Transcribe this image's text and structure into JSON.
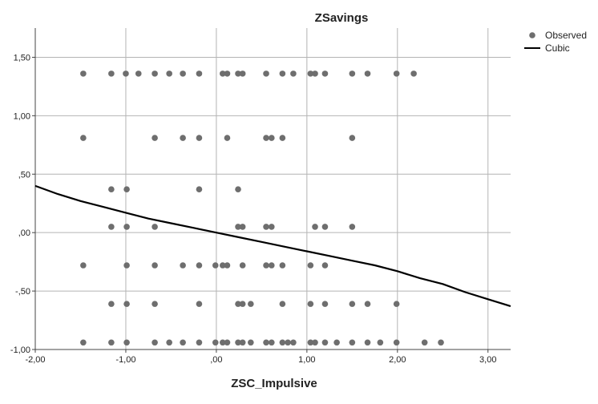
{
  "chart_data": {
    "type": "scatter",
    "title": "ZSavings",
    "xlabel": "ZSC_Impulsive",
    "ylabel": "",
    "xlim": [
      -2.0,
      3.25
    ],
    "ylim": [
      -1.0,
      1.75
    ],
    "x_ticks": [
      -2,
      -1,
      0,
      1,
      2,
      3
    ],
    "x_tick_labels": [
      "-2,00",
      "-1,00",
      ",00",
      "1,00",
      "2,00",
      "3,00"
    ],
    "y_ticks": [
      -1,
      -0.5,
      0,
      0.5,
      1,
      1.5
    ],
    "y_tick_labels": [
      "-1,00",
      "-,50",
      ",00",
      ",50",
      "1,00",
      "1,50"
    ],
    "grid": true,
    "legend": {
      "position": "top-right",
      "entries": [
        {
          "label": "Observed",
          "marker": "circle"
        },
        {
          "label": "Cubic",
          "marker": "line"
        }
      ]
    },
    "colors": {
      "observed": "#6e6e6e",
      "cubic": "#000000",
      "grid": "#b4b4b4",
      "axis": "#444444"
    },
    "series": [
      {
        "name": "Observed",
        "points": [
          [
            -1.47,
            1.36
          ],
          [
            -1.16,
            1.36
          ],
          [
            -1.0,
            1.36
          ],
          [
            -0.86,
            1.36
          ],
          [
            -0.68,
            1.36
          ],
          [
            -0.52,
            1.36
          ],
          [
            -0.37,
            1.36
          ],
          [
            -0.19,
            1.36
          ],
          [
            0.07,
            1.36
          ],
          [
            0.12,
            1.36
          ],
          [
            0.24,
            1.36
          ],
          [
            0.29,
            1.36
          ],
          [
            0.55,
            1.36
          ],
          [
            0.73,
            1.36
          ],
          [
            0.85,
            1.36
          ],
          [
            1.04,
            1.36
          ],
          [
            1.09,
            1.36
          ],
          [
            1.2,
            1.36
          ],
          [
            1.5,
            1.36
          ],
          [
            1.67,
            1.36
          ],
          [
            1.99,
            1.36
          ],
          [
            2.18,
            1.36
          ],
          [
            -1.47,
            0.81
          ],
          [
            -0.68,
            0.81
          ],
          [
            -0.37,
            0.81
          ],
          [
            -0.19,
            0.81
          ],
          [
            0.12,
            0.81
          ],
          [
            0.55,
            0.81
          ],
          [
            0.61,
            0.81
          ],
          [
            0.73,
            0.81
          ],
          [
            1.5,
            0.81
          ],
          [
            -1.16,
            0.37
          ],
          [
            -0.99,
            0.37
          ],
          [
            -0.19,
            0.37
          ],
          [
            0.24,
            0.37
          ],
          [
            -1.16,
            0.05
          ],
          [
            -0.99,
            0.05
          ],
          [
            -0.68,
            0.05
          ],
          [
            0.24,
            0.05
          ],
          [
            0.29,
            0.05
          ],
          [
            0.55,
            0.05
          ],
          [
            0.61,
            0.05
          ],
          [
            1.09,
            0.05
          ],
          [
            1.2,
            0.05
          ],
          [
            1.5,
            0.05
          ],
          [
            -1.47,
            -0.28
          ],
          [
            -0.99,
            -0.28
          ],
          [
            -0.68,
            -0.28
          ],
          [
            -0.37,
            -0.28
          ],
          [
            -0.19,
            -0.28
          ],
          [
            -0.01,
            -0.28
          ],
          [
            0.07,
            -0.28
          ],
          [
            0.12,
            -0.28
          ],
          [
            0.29,
            -0.28
          ],
          [
            0.55,
            -0.28
          ],
          [
            0.61,
            -0.28
          ],
          [
            0.73,
            -0.28
          ],
          [
            1.04,
            -0.28
          ],
          [
            1.2,
            -0.28
          ],
          [
            -1.16,
            -0.61
          ],
          [
            -0.99,
            -0.61
          ],
          [
            -0.68,
            -0.61
          ],
          [
            -0.19,
            -0.61
          ],
          [
            0.24,
            -0.61
          ],
          [
            0.29,
            -0.61
          ],
          [
            0.38,
            -0.61
          ],
          [
            0.73,
            -0.61
          ],
          [
            1.04,
            -0.61
          ],
          [
            1.2,
            -0.61
          ],
          [
            1.5,
            -0.61
          ],
          [
            1.67,
            -0.61
          ],
          [
            1.99,
            -0.61
          ],
          [
            -1.47,
            -0.94
          ],
          [
            -1.16,
            -0.94
          ],
          [
            -0.99,
            -0.94
          ],
          [
            -0.68,
            -0.94
          ],
          [
            -0.52,
            -0.94
          ],
          [
            -0.37,
            -0.94
          ],
          [
            -0.19,
            -0.94
          ],
          [
            -0.01,
            -0.94
          ],
          [
            0.07,
            -0.94
          ],
          [
            0.12,
            -0.94
          ],
          [
            0.24,
            -0.94
          ],
          [
            0.29,
            -0.94
          ],
          [
            0.38,
            -0.94
          ],
          [
            0.55,
            -0.94
          ],
          [
            0.61,
            -0.94
          ],
          [
            0.73,
            -0.94
          ],
          [
            0.79,
            -0.94
          ],
          [
            0.85,
            -0.94
          ],
          [
            1.04,
            -0.94
          ],
          [
            1.09,
            -0.94
          ],
          [
            1.2,
            -0.94
          ],
          [
            1.33,
            -0.94
          ],
          [
            1.5,
            -0.94
          ],
          [
            1.67,
            -0.94
          ],
          [
            1.81,
            -0.94
          ],
          [
            1.99,
            -0.94
          ],
          [
            2.3,
            -0.94
          ],
          [
            2.48,
            -0.94
          ]
        ]
      },
      {
        "name": "Cubic",
        "x": [
          -2.0,
          -1.75,
          -1.5,
          -1.25,
          -1.0,
          -0.75,
          -0.5,
          -0.25,
          0.0,
          0.25,
          0.5,
          0.75,
          1.0,
          1.25,
          1.5,
          1.75,
          2.0,
          2.25,
          2.5,
          2.75,
          3.0,
          3.25
        ],
        "y": [
          0.4,
          0.33,
          0.27,
          0.22,
          0.17,
          0.12,
          0.08,
          0.04,
          0.0,
          -0.04,
          -0.08,
          -0.12,
          -0.16,
          -0.2,
          -0.24,
          -0.28,
          -0.33,
          -0.39,
          -0.44,
          -0.51,
          -0.57,
          -0.63
        ]
      }
    ]
  }
}
